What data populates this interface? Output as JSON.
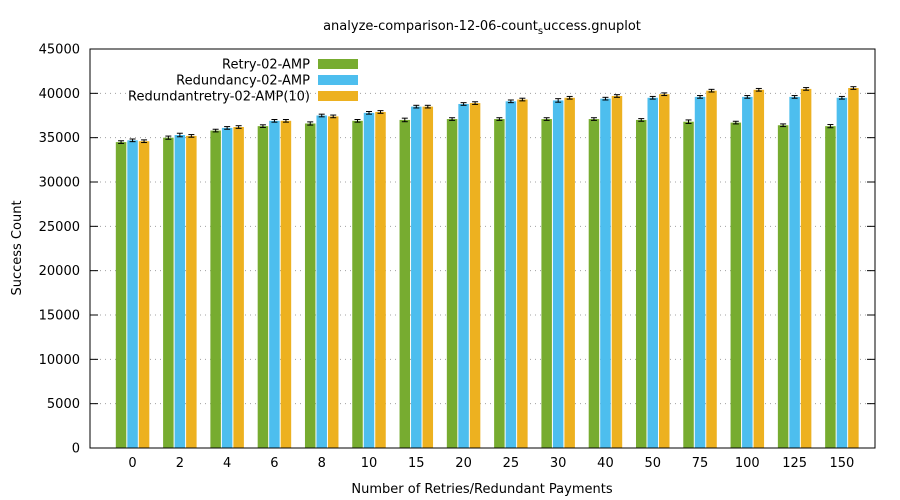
{
  "chart_data": {
    "type": "bar",
    "title_main": "analyze-comparison-12-06-count",
    "title_sub": "s",
    "title_tail": "uccess.gnuplot",
    "xlabel": "Number of Retries/Redundant Payments",
    "ylabel": "Success Count",
    "ylim": [
      0,
      45000
    ],
    "yticks": [
      0,
      5000,
      10000,
      15000,
      20000,
      25000,
      30000,
      35000,
      40000,
      45000
    ],
    "grid": true,
    "legend_position": "top-left",
    "categories": [
      "0",
      "2",
      "4",
      "6",
      "8",
      "10",
      "15",
      "20",
      "25",
      "30",
      "40",
      "50",
      "75",
      "100",
      "125",
      "150"
    ],
    "series": [
      {
        "name": "Retry-02-AMP",
        "color": "#77ac30",
        "values": [
          34500,
          35000,
          35800,
          36300,
          36600,
          36900,
          37000,
          37100,
          37100,
          37100,
          37100,
          37000,
          36800,
          36700,
          36400,
          36300
        ],
        "errors": [
          150,
          180,
          150,
          150,
          180,
          150,
          200,
          150,
          150,
          150,
          150,
          150,
          200,
          150,
          150,
          180
        ]
      },
      {
        "name": "Redundancy-02-AMP",
        "color": "#4dbeee",
        "values": [
          34700,
          35300,
          36100,
          36900,
          37500,
          37800,
          38500,
          38800,
          39100,
          39200,
          39400,
          39500,
          39600,
          39600,
          39600,
          39500
        ],
        "errors": [
          150,
          200,
          150,
          150,
          150,
          150,
          150,
          150,
          150,
          200,
          150,
          150,
          150,
          150,
          150,
          150
        ]
      },
      {
        "name": "Redundantretry-02-AMP(10)",
        "color": "#edb120",
        "values": [
          34600,
          35200,
          36200,
          36900,
          37400,
          37900,
          38500,
          38900,
          39300,
          39500,
          39700,
          39900,
          40300,
          40400,
          40500,
          40600
        ],
        "errors": [
          150,
          150,
          150,
          150,
          150,
          150,
          150,
          150,
          150,
          150,
          150,
          150,
          150,
          150,
          150,
          150
        ]
      }
    ]
  }
}
